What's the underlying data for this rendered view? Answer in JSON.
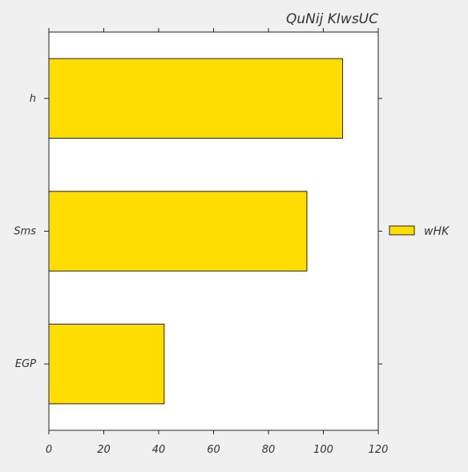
{
  "chart_data": {
    "type": "bar",
    "orientation": "horizontal",
    "title": "QuNij KIwsUC",
    "categories": [
      "h",
      "Sms",
      "EGP"
    ],
    "series": [
      {
        "name": "wHK",
        "values": [
          107,
          94,
          42
        ]
      }
    ],
    "xlim": [
      0,
      120
    ],
    "xticks": [
      0,
      20,
      40,
      60,
      80,
      100,
      120
    ],
    "xlabel": "",
    "ylabel": "",
    "grid": false,
    "legend_position": "right",
    "colors": {
      "bar_fill": "#ffdd00",
      "bar_edge": "#222222",
      "plot_background": "#ffffff",
      "figure_background": "#f0f0f0",
      "text": "#333333"
    }
  }
}
